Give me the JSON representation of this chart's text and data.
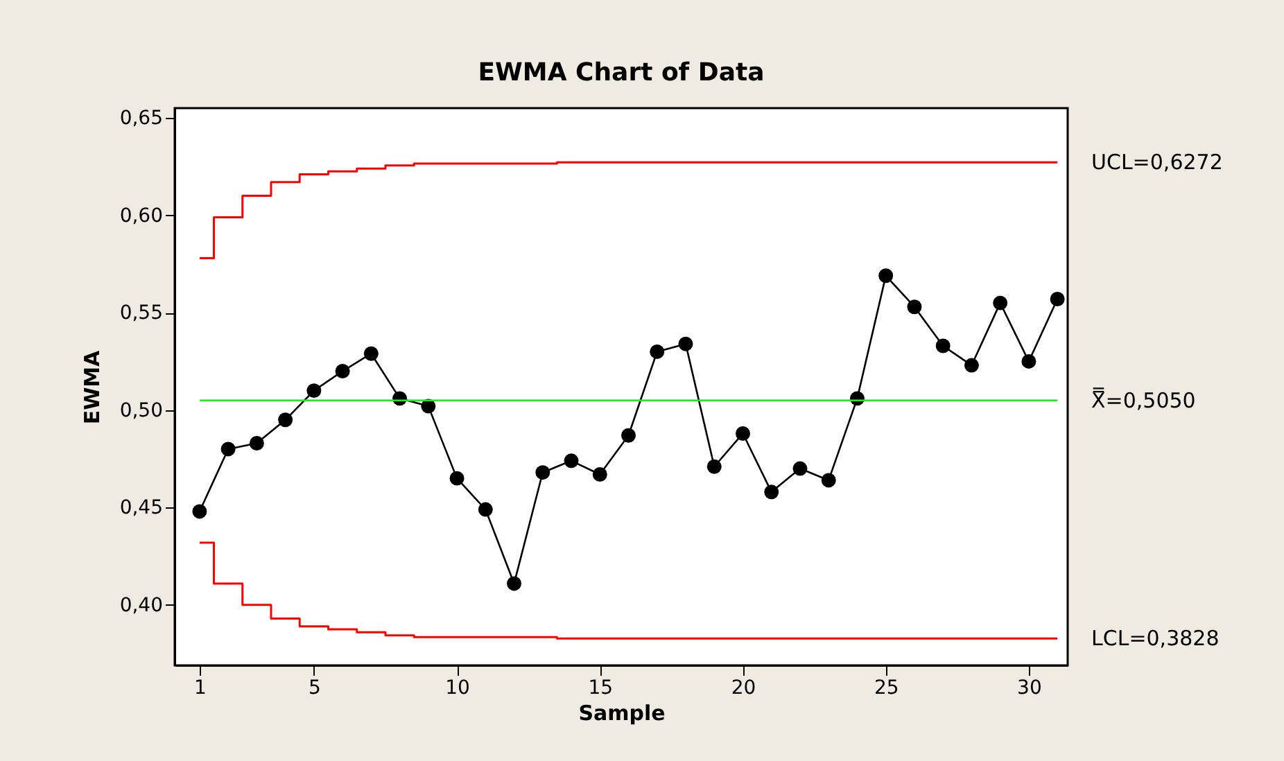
{
  "chart_data": {
    "type": "line",
    "title": "EWMA Chart of Data",
    "xlabel": "Sample",
    "ylabel": "EWMA",
    "x": [
      1,
      2,
      3,
      4,
      5,
      6,
      7,
      8,
      9,
      10,
      11,
      12,
      13,
      14,
      15,
      16,
      17,
      18,
      19,
      20,
      21,
      22,
      23,
      24,
      25,
      26,
      27,
      28,
      29,
      30,
      31
    ],
    "series": [
      {
        "color": "#000000",
        "marker": "circle",
        "values": [
          0.448,
          0.48,
          0.483,
          0.495,
          0.51,
          0.52,
          0.529,
          0.506,
          0.502,
          0.465,
          0.449,
          0.411,
          0.468,
          0.474,
          0.467,
          0.487,
          0.53,
          0.534,
          0.471,
          0.488,
          0.458,
          0.47,
          0.464,
          0.506,
          0.569,
          0.553,
          0.533,
          0.523,
          0.555,
          0.525,
          0.557
        ]
      },
      {
        "type": "step",
        "name": "UCL=0,6272",
        "color": "#ff0000",
        "marker": "none",
        "values": [
          0.578,
          0.599,
          0.61,
          0.617,
          0.621,
          0.6225,
          0.624,
          0.6256,
          0.6265,
          0.6265,
          0.6265,
          0.6265,
          0.6265,
          0.6272,
          0.6272,
          0.6272,
          0.6272,
          0.6272,
          0.6272,
          0.6272,
          0.6272,
          0.6272,
          0.6272,
          0.6272,
          0.6272,
          0.6272,
          0.6272,
          0.6272,
          0.6272,
          0.6272,
          0.6272
        ]
      },
      {
        "type": "step",
        "name": "LCL=0,3828",
        "color": "#ff0000",
        "marker": "none",
        "values": [
          0.432,
          0.411,
          0.4,
          0.393,
          0.389,
          0.3875,
          0.386,
          0.3844,
          0.3835,
          0.3835,
          0.3835,
          0.3835,
          0.3835,
          0.3828,
          0.3828,
          0.3828,
          0.3828,
          0.3828,
          0.3828,
          0.3828,
          0.3828,
          0.3828,
          0.3828,
          0.3828,
          0.3828,
          0.3828,
          0.3828,
          0.3828,
          0.3828,
          0.3828,
          0.3828
        ]
      }
    ],
    "ref_lines": [
      {
        "axis": "y",
        "value": 0.505,
        "label": "X̿=0,5050",
        "color": "#00ff00"
      }
    ],
    "xlim": [
      0.13,
      31.36
    ],
    "xticks": [
      1,
      5,
      10,
      15,
      20,
      25,
      30
    ],
    "ylim": [
      0.369,
      0.655
    ],
    "yticks": [
      {
        "value": 0.4,
        "label": "0,40"
      },
      {
        "value": 0.45,
        "label": "0,45"
      },
      {
        "value": 0.5,
        "label": "0,50"
      },
      {
        "value": 0.55,
        "label": "0,55"
      },
      {
        "value": 0.6,
        "label": "0,60"
      },
      {
        "value": 0.65,
        "label": "0,65"
      }
    ],
    "grid": false
  }
}
